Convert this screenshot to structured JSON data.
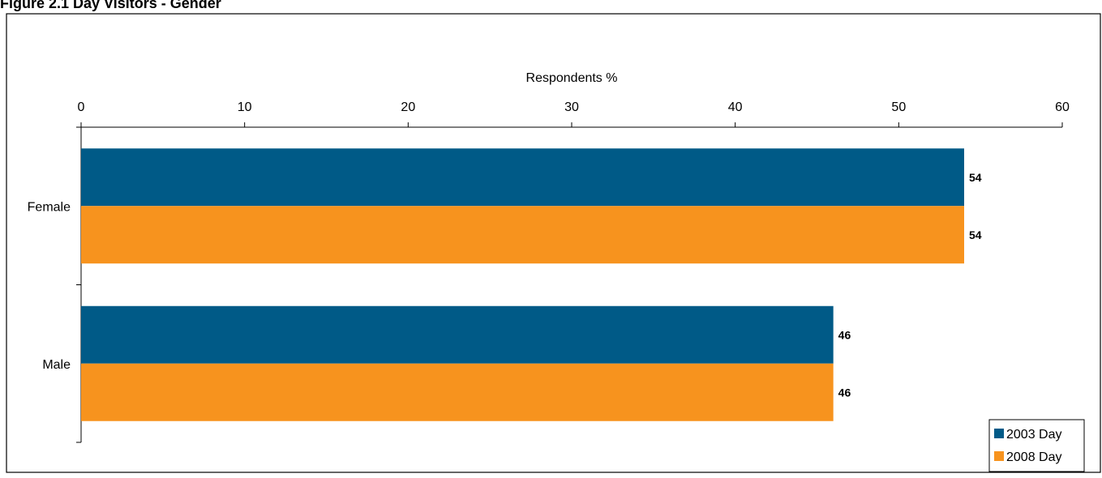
{
  "chart_data": {
    "type": "bar",
    "orientation": "horizontal",
    "title": "Figure 2.1 Day Visitors - Gender",
    "xlabel": "Respondents %",
    "ylabel": "",
    "xlim": [
      0,
      60
    ],
    "x_ticks": [
      "0",
      "10",
      "20",
      "30",
      "40",
      "50",
      "60"
    ],
    "x_axis_position": "top",
    "grid": false,
    "categories": [
      "Female",
      "Male"
    ],
    "series": [
      {
        "name": "2003 Day",
        "color": "#005A87",
        "values": [
          54,
          46
        ]
      },
      {
        "name": "2008 Day",
        "color": "#F7931E",
        "values": [
          54,
          46
        ]
      }
    ],
    "legend_position": "bottom-right"
  }
}
